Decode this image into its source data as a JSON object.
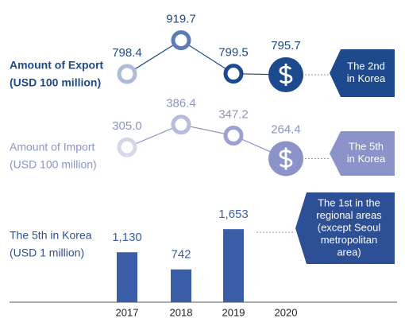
{
  "chart_data": [
    {
      "type": "line",
      "title": "Amount of Export",
      "unit": "(USD 100 million)",
      "values": [
        798.4,
        919.7,
        799.5,
        795.7
      ],
      "ylim": [
        750,
        950
      ],
      "color": "#1d4a8c",
      "point_colors": [
        "#aebbd8",
        "#5d7bb6",
        "#1d4a8c",
        "#1d4a8c"
      ],
      "badge": [
        "The 2nd",
        "in Korea"
      ],
      "badge_color": "#1d4a8c"
    },
    {
      "type": "line",
      "title": "Amount of Import",
      "unit": "(USD 100 million)",
      "values": [
        305.0,
        386.4,
        347.2,
        264.4
      ],
      "value_labels": [
        "305.0",
        "386.4",
        "347.2",
        "264.4"
      ],
      "ylim": [
        220,
        420
      ],
      "color": "#8c93c9",
      "point_colors": [
        "#d5d8ea",
        "#b7bcdf",
        "#9ba1d2",
        "#8c93c9"
      ],
      "badge": [
        "The 5th",
        "in Korea"
      ],
      "badge_color": "#8c93c9"
    },
    {
      "type": "bar",
      "title": "The 5th in Korea",
      "unit": "(USD 1 million)",
      "categories": [
        "2017",
        "2018",
        "2019",
        "2020"
      ],
      "values": [
        1130,
        742,
        1653,
        null
      ],
      "value_labels": [
        "1,130",
        "742",
        "1,653",
        null
      ],
      "ylim": [
        0,
        1800
      ],
      "color": "#3a5ea8",
      "badge": [
        "The 1st in the",
        "regional areas",
        "(except Seoul",
        "metropolitan",
        "area)"
      ],
      "badge_color": "#2d4f95"
    }
  ]
}
